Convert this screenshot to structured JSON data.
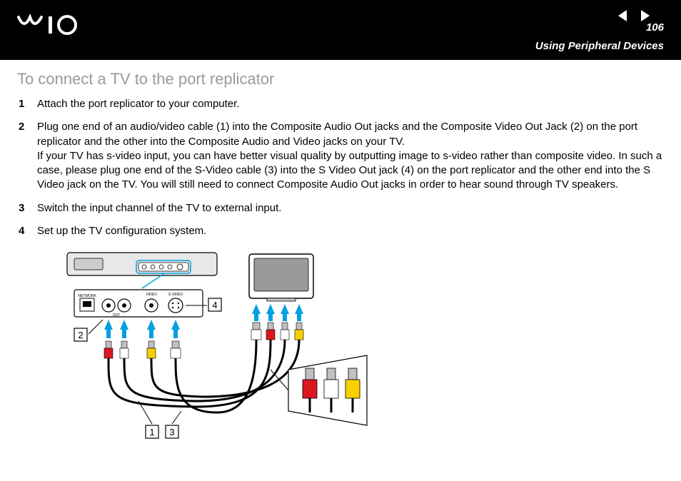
{
  "header": {
    "logo_svg_label": "VAIO",
    "page_number": "106",
    "chapter_title": "Using Peripheral Devices"
  },
  "section": {
    "title": "To connect a TV to the port replicator",
    "steps": [
      "Attach the port replicator to your computer.",
      "Plug one end of an audio/video cable (1) into the Composite Audio Out jacks and the Composite Video Out Jack (2) on the port replicator and the other into the Composite Audio and Video jacks on your TV.\nIf your TV has s-video input, you can have better visual quality by outputting image to s-video rather than composite video. In such a case, please plug one end of the S-Video cable (3) into the S Video Out jack (4) on the port replicator and the other end into the S Video jack on the TV. You will still need to connect Composite Audio Out jacks in order to hear sound through TV speakers.",
      "Switch the input channel of the TV to external input.",
      "Set up the TV configuration system."
    ]
  },
  "diagram": {
    "callouts": [
      "1",
      "2",
      "3",
      "4"
    ],
    "colors": {
      "arrow": "#00a0e0",
      "rca_red": "#d91820",
      "rca_white": "#ffffff",
      "rca_yellow": "#f8d000",
      "outline": "#000000",
      "shade_light": "#e8e8e8",
      "shade_mid": "#cccccc",
      "shade_dark": "#9a9a9a"
    }
  }
}
